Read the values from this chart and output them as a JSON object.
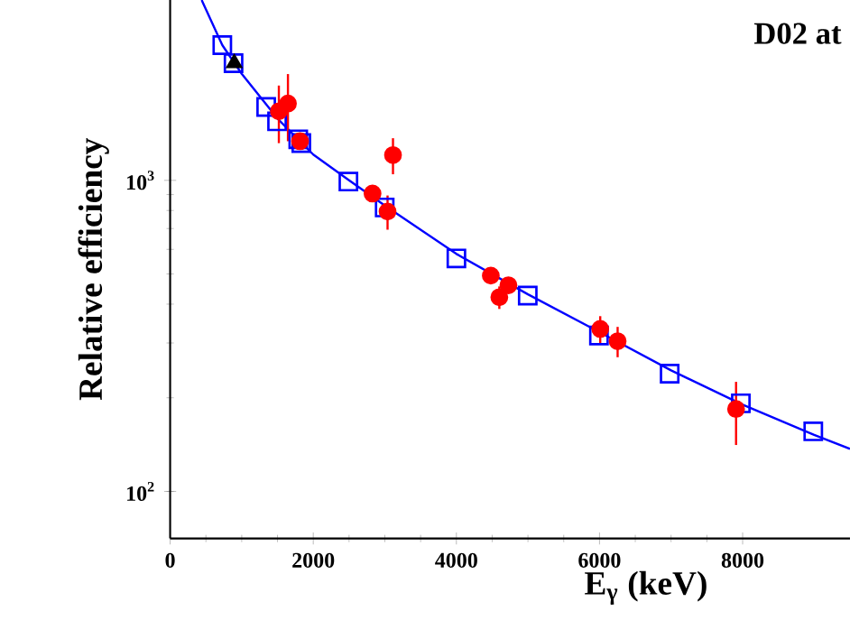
{
  "chart_data": {
    "type": "scatter",
    "title": "D02 at",
    "xlabel": "E$_{γ}$ (keV)",
    "ylabel": "Relative efficiency",
    "log": "y",
    "xlim": [
      0,
      9500
    ],
    "ylim": [
      70.6,
      3800
    ],
    "xticks": [
      0,
      2000,
      4000,
      6000,
      8000
    ],
    "yticks": [
      {
        "value": 100,
        "label": "10$^{2}$"
      },
      {
        "value": 1000,
        "label": "10$^{3}$"
      }
    ],
    "series": [
      {
        "type": "line",
        "color": "#0000ff",
        "marker": "none",
        "x": [
          440,
          729,
          1000,
          1500,
          2000,
          2500,
          3000,
          4000,
          5000,
          6000,
          7000,
          8000,
          9000,
          9500
        ],
        "values": [
          3800,
          2720,
          2200,
          1580,
          1210,
          1000,
          830,
          580,
          430,
          325,
          245,
          190,
          152,
          137
        ]
      },
      {
        "color": "#0000ff",
        "marker": "square",
        "x": [
          729,
          886,
          1342,
          1494,
          1790,
          1833,
          2491,
          2998,
          4000,
          4997,
          5992,
          6980,
          7975,
          8987
        ],
        "values": [
          2720,
          2380,
          1722,
          1548,
          1355,
          1318,
          991,
          818,
          561,
          426,
          317,
          239,
          192,
          156
        ]
      },
      {
        "color": "#000000",
        "marker": "triangle",
        "x": [
          896
        ],
        "values": [
          2380
        ]
      },
      {
        "color": "#ff0000",
        "marker": "circle",
        "x": [
          1519,
          1646,
          1815,
          2828,
          3038,
          3114,
          4481,
          4600,
          4727,
          6010,
          6253,
          7908
        ],
        "values": [
          1667,
          1766,
          1336,
          907,
          794,
          1206,
          494,
          421,
          460,
          333,
          304,
          184
        ],
        "errors": [
          350,
          430,
          null,
          null,
          100,
          160,
          null,
          35,
          null,
          33,
          34,
          [
            141,
            225
          ]
        ]
      }
    ]
  }
}
